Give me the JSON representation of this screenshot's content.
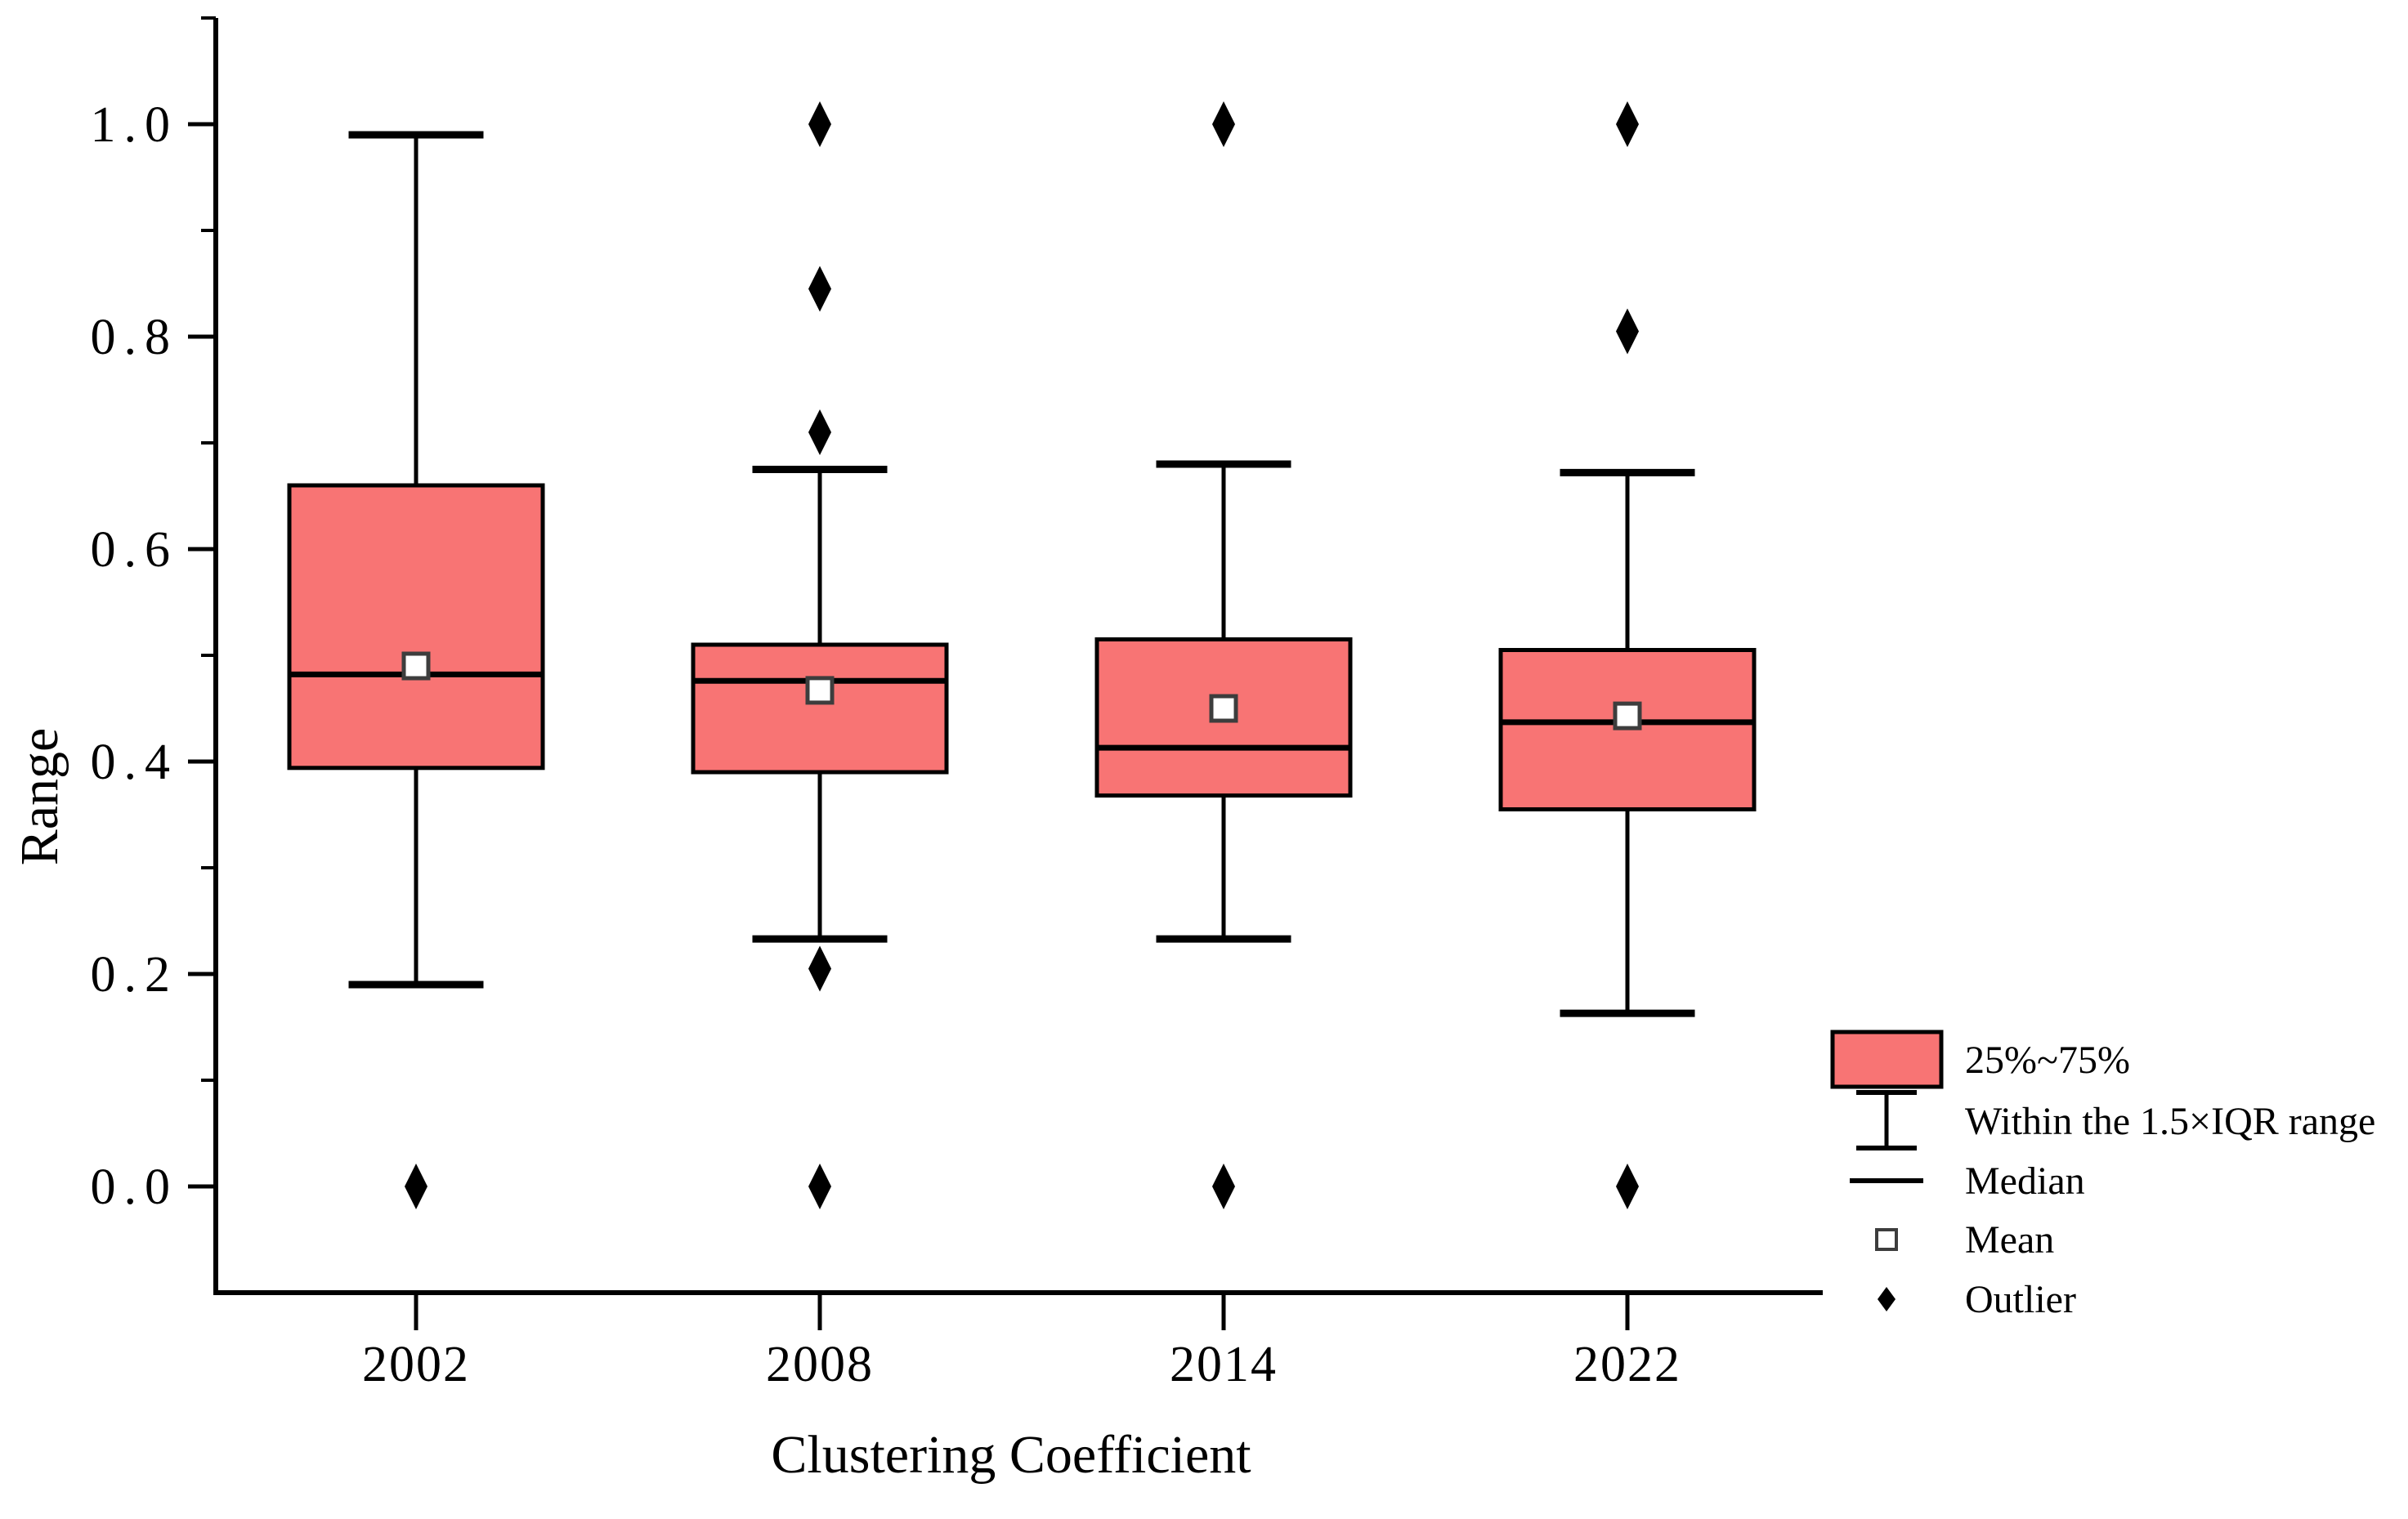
{
  "figure": {
    "background": "#ffffff",
    "colors": {
      "box_fill": "#F87474",
      "line_stroke": "#000000",
      "mean_fill": "#ffffff",
      "mean_stroke": "#3d3d3d",
      "outlier_fill": "#000000"
    }
  },
  "chart_data": {
    "type": "boxplot",
    "title": "",
    "xlabel": "Clustering Coefficient",
    "ylabel": "Range",
    "ylim": [
      -0.1,
      1.1
    ],
    "grid": false,
    "legend_position": "bottom-right",
    "categories": [
      "2002",
      "2008",
      "2014",
      "2022"
    ],
    "y_ticks": [
      {
        "value": 1.0,
        "label": "1.0"
      },
      {
        "value": 0.8,
        "label": "0.8"
      },
      {
        "value": 0.6,
        "label": "0.6"
      },
      {
        "value": 0.4,
        "label": "0.4"
      },
      {
        "value": 0.2,
        "label": "0.2"
      },
      {
        "value": 0.0,
        "label": "0.0"
      }
    ],
    "y_minor_ticks": [
      1.1,
      0.9,
      0.7,
      0.5,
      0.3,
      0.1
    ],
    "series": [
      {
        "category": "2002",
        "whisker_low": 0.19,
        "q1": 0.394,
        "median": 0.482,
        "mean": 0.49,
        "q3": 0.66,
        "whisker_high": 0.99,
        "outliers": [
          0.0
        ]
      },
      {
        "category": "2008",
        "whisker_low": 0.233,
        "q1": 0.39,
        "median": 0.476,
        "mean": 0.467,
        "q3": 0.51,
        "whisker_high": 0.675,
        "outliers": [
          1.0,
          0.845,
          0.71,
          0.205,
          0.0
        ]
      },
      {
        "category": "2014",
        "whisker_low": 0.233,
        "q1": 0.368,
        "median": 0.413,
        "mean": 0.45,
        "q3": 0.515,
        "whisker_high": 0.68,
        "outliers": [
          1.0,
          0.0
        ]
      },
      {
        "category": "2022",
        "whisker_low": 0.163,
        "q1": 0.355,
        "median": 0.437,
        "mean": 0.443,
        "q3": 0.505,
        "whisker_high": 0.672,
        "outliers": [
          1.0,
          0.805,
          0.0
        ]
      }
    ],
    "legend": {
      "items": [
        {
          "symbol": "box",
          "label": "25%~75%"
        },
        {
          "symbol": "whisker",
          "label": "Within the 1.5×IQR range"
        },
        {
          "symbol": "median",
          "label": "Median"
        },
        {
          "symbol": "mean",
          "label": "Mean"
        },
        {
          "symbol": "outlier",
          "label": "Outlier"
        }
      ]
    }
  }
}
